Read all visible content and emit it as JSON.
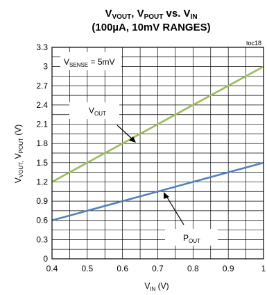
{
  "chart_data": {
    "type": "line",
    "title_line1": "V_VOUT, V_POUT vs. V_IN",
    "title_line2": "(100µA, 10mV RANGES)",
    "corner_label": "toc18",
    "annotation": "V_SENSE = 5mV",
    "xlabel": "V_IN (V)",
    "ylabel": "V_VOUT, V_POUT (V)",
    "xlim": [
      0.4,
      1.0
    ],
    "ylim": [
      0,
      3.3
    ],
    "x_ticks": [
      "0.4",
      "0.5",
      "0.6",
      "0.7",
      "0.8",
      "0.9",
      "1"
    ],
    "y_ticks": [
      "0",
      "0.3",
      "0.6",
      "0.9",
      "1.2",
      "1.5",
      "1.8",
      "2.1",
      "2.4",
      "2.7",
      "3",
      "3.3"
    ],
    "grid": true,
    "series": [
      {
        "name": "VOUT",
        "label": "V_OUT",
        "color": "#9bbb59",
        "x": [
          0.4,
          1.0
        ],
        "y": [
          1.2,
          3.0
        ]
      },
      {
        "name": "POUT",
        "label": "P_OUT",
        "color": "#4f81bd",
        "x": [
          0.4,
          1.0
        ],
        "y": [
          0.6,
          1.5
        ]
      }
    ]
  }
}
